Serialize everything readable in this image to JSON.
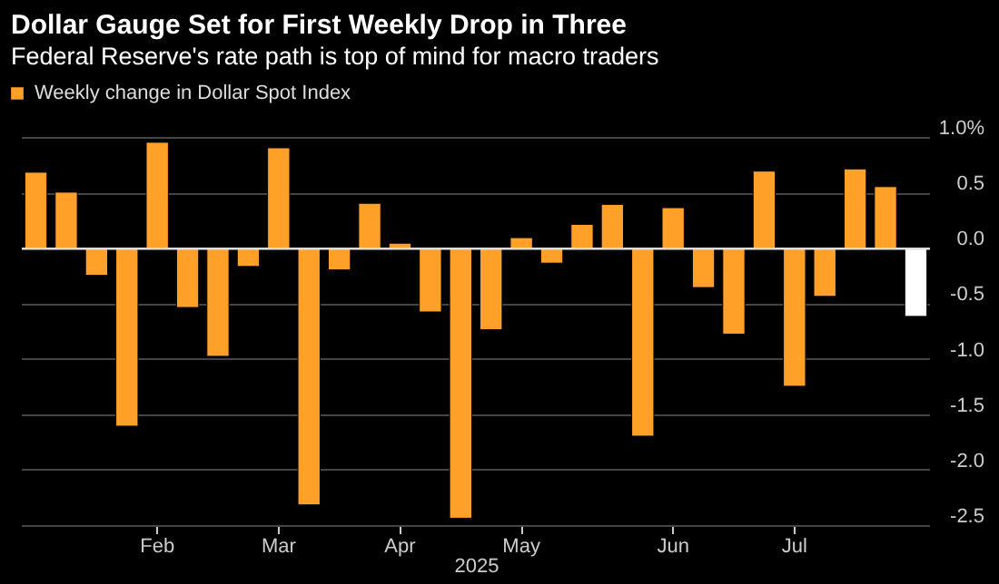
{
  "chart_data": {
    "type": "bar",
    "title": "Dollar Gauge Set for First Weekly Drop in Three",
    "subtitle": "Federal Reserve's rate path is top of mind for macro traders",
    "xlabel": "2025",
    "categories": [
      null,
      null,
      null,
      null,
      "Feb",
      null,
      null,
      null,
      "Mar",
      null,
      null,
      null,
      "Apr",
      null,
      null,
      null,
      "May",
      null,
      null,
      null,
      null,
      "Jun",
      null,
      null,
      null,
      "Jul",
      null,
      null,
      null,
      null
    ],
    "series": [
      {
        "name": "Weekly change in Dollar Spot Index",
        "color": "#ffa028",
        "values": [
          0.69,
          0.51,
          -0.24,
          -1.6,
          0.96,
          -0.53,
          -0.97,
          -0.16,
          0.91,
          -2.31,
          -0.19,
          0.41,
          0.05,
          -0.57,
          -2.43,
          -0.73,
          0.1,
          -0.13,
          0.22,
          0.4,
          -1.69,
          0.37,
          -0.35,
          -0.77,
          0.7,
          -1.24,
          -0.43,
          0.72,
          0.56,
          -0.61
        ],
        "colors": [
          "#ffa028",
          "#ffa028",
          "#ffa028",
          "#ffa028",
          "#ffa028",
          "#ffa028",
          "#ffa028",
          "#ffa028",
          "#ffa028",
          "#ffa028",
          "#ffa028",
          "#ffa028",
          "#ffa028",
          "#ffa028",
          "#ffa028",
          "#ffa028",
          "#ffa028",
          "#ffa028",
          "#ffa028",
          "#ffa028",
          "#ffa028",
          "#ffa028",
          "#ffa028",
          "#ffa028",
          "#ffa028",
          "#ffa028",
          "#ffa028",
          "#ffa028",
          "#ffa028",
          "#ffffff"
        ]
      }
    ],
    "ylim": [
      -2.5,
      1
    ],
    "yticks": [
      {
        "value": 1,
        "label": "1.0%"
      },
      0.5,
      {
        "value": 0,
        "label": "0.0"
      },
      -0.5,
      {
        "value": -1,
        "label": "-1.0"
      },
      -1.5,
      {
        "value": -2,
        "label": "-2.0"
      },
      -2.5
    ],
    "ref_lines": [
      {
        "axis": "y",
        "value": 0,
        "color": "#dddddd"
      }
    ],
    "grid": "y",
    "legend": "top left"
  }
}
